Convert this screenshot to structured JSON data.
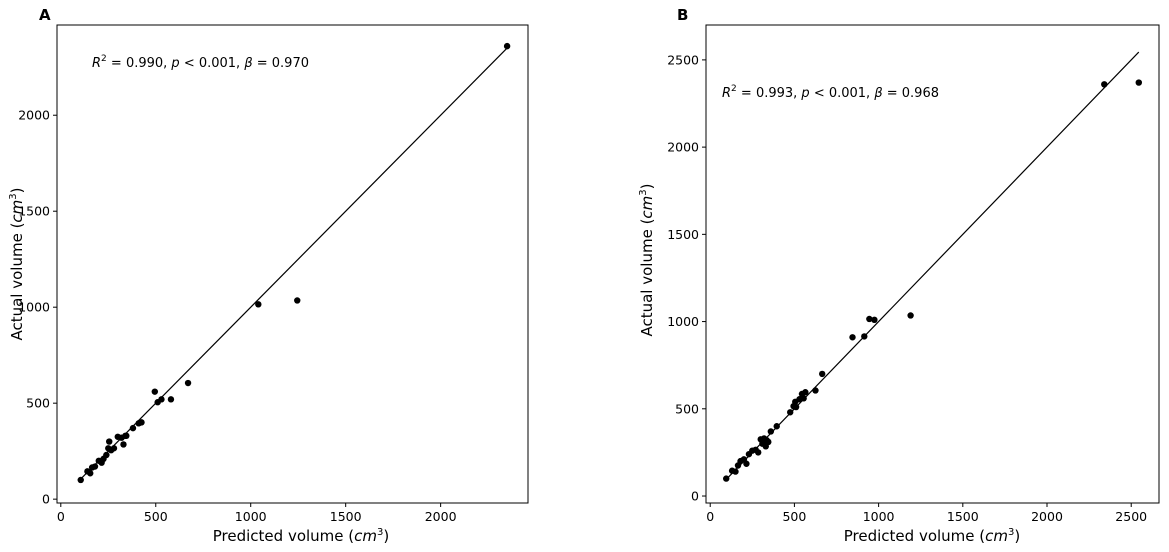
{
  "chart_data": [
    {
      "type": "scatter",
      "panel_label": "A",
      "xlabel_main": "Predicted volume (",
      "xlabel_unit": "cm",
      "xlabel_exp": "3",
      "xlabel_close": ")",
      "ylabel_main": "Actual volume (",
      "ylabel_unit": "cm",
      "ylabel_exp": "3",
      "ylabel_close": ")",
      "annotation": {
        "r2_label": "R",
        "r2_exp": "2",
        "r2_value": " = 0.990,  ",
        "p_label": "p",
        "p_value": " < 0.001,  ",
        "beta_label": "β",
        "beta_value": " = 0.970"
      },
      "xlim": [
        -20,
        2460
      ],
      "ylim": [
        -20,
        2470
      ],
      "xticks": [
        "0",
        "500",
        "1000",
        "1500",
        "2000"
      ],
      "yticks": [
        "0",
        "500",
        "1000",
        "1500",
        "2000"
      ],
      "fit_line": {
        "x": [
          100,
          2350
        ],
        "y": [
          100,
          2350
        ]
      },
      "points": {
        "x": [
          105,
          140,
          155,
          165,
          180,
          200,
          215,
          225,
          240,
          250,
          255,
          265,
          280,
          300,
          320,
          330,
          340,
          345,
          380,
          410,
          425,
          495,
          510,
          530,
          580,
          670,
          1040,
          1245,
          2350
        ],
        "y": [
          100,
          145,
          135,
          165,
          170,
          200,
          190,
          210,
          230,
          265,
          300,
          255,
          265,
          325,
          320,
          285,
          330,
          330,
          370,
          395,
          400,
          560,
          505,
          520,
          520,
          605,
          1015,
          1035,
          2360
        ]
      }
    },
    {
      "type": "scatter",
      "panel_label": "B",
      "xlabel_main": "Predicted volume (",
      "xlabel_unit": "cm",
      "xlabel_exp": "3",
      "xlabel_close": ")",
      "ylabel_main": "Actual volume (",
      "ylabel_unit": "cm",
      "ylabel_exp": "3",
      "ylabel_close": ")",
      "annotation": {
        "r2_label": "R",
        "r2_exp": "2",
        "r2_value": " = 0.993,  ",
        "p_label": "p",
        "p_value": " < 0.001,  ",
        "beta_label": "β",
        "beta_value": " = 0.968"
      },
      "xlim": [
        -25,
        2665
      ],
      "ylim": [
        -40,
        2700
      ],
      "xticks": [
        "0",
        "500",
        "1000",
        "1500",
        "2000",
        "2500"
      ],
      "yticks": [
        "0",
        "500",
        "1000",
        "1500",
        "2000",
        "2500"
      ],
      "fit_line": {
        "x": [
          95,
          2545
        ],
        "y": [
          95,
          2545
        ]
      },
      "points": {
        "x": [
          95,
          130,
          150,
          165,
          180,
          200,
          215,
          230,
          250,
          270,
          285,
          300,
          310,
          320,
          330,
          335,
          345,
          360,
          395,
          475,
          495,
          505,
          510,
          530,
          545,
          555,
          565,
          625,
          665,
          845,
          915,
          945,
          975,
          1190,
          2340,
          2545
        ],
        "y": [
          100,
          145,
          140,
          175,
          200,
          210,
          185,
          240,
          260,
          265,
          250,
          325,
          300,
          330,
          285,
          320,
          310,
          370,
          400,
          480,
          515,
          540,
          510,
          555,
          585,
          560,
          595,
          605,
          700,
          910,
          915,
          1015,
          1010,
          1035,
          2360,
          2370
        ]
      }
    }
  ]
}
